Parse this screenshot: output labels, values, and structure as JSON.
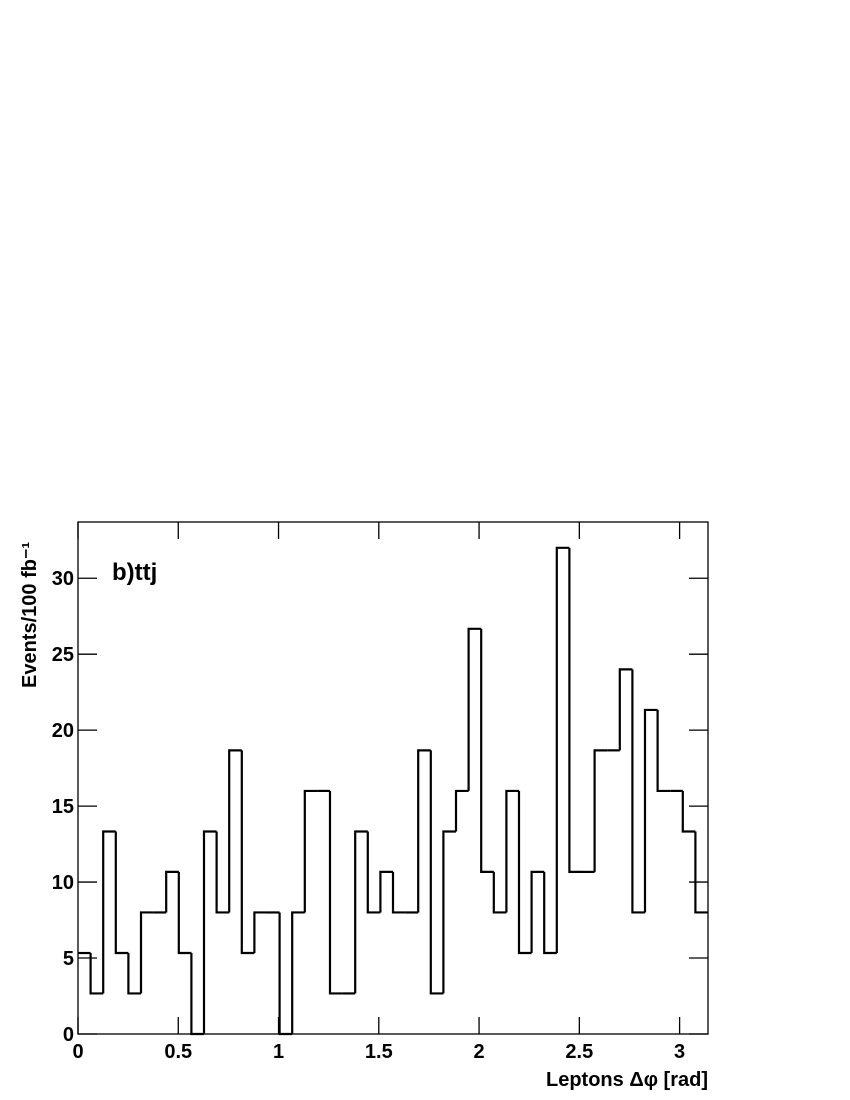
{
  "chart_data": {
    "type": "histogram",
    "annotation": "b)ttj",
    "xlabel": "Leptons Δφ [rad]",
    "ylabel": "Events/100 fb⁻¹",
    "bins": [
      0,
      0.0628,
      0.1257,
      0.1885,
      0.2513,
      0.3142,
      0.377,
      0.4398,
      0.5027,
      0.5655,
      0.6283,
      0.6912,
      0.754,
      0.8168,
      0.8796,
      0.9425,
      1.0053,
      1.0681,
      1.131,
      1.1938,
      1.2566,
      1.3195,
      1.3823,
      1.4451,
      1.508,
      1.5708,
      1.6336,
      1.6965,
      1.7593,
      1.8221,
      1.885,
      1.9478,
      2.0106,
      2.0735,
      2.1363,
      2.1991,
      2.2619,
      2.3248,
      2.3876,
      2.4504,
      2.5133,
      2.5761,
      2.6389,
      2.7018,
      2.7646,
      2.8274,
      2.8903,
      2.9531,
      3.0159,
      3.0788,
      3.1416
    ],
    "values": [
      5.33,
      2.67,
      13.33,
      5.33,
      2.67,
      8,
      8,
      10.67,
      5.33,
      0,
      13.33,
      8,
      18.67,
      5.33,
      8,
      8,
      0,
      8,
      16,
      16,
      2.67,
      2.67,
      13.33,
      8,
      10.67,
      8,
      8,
      18.67,
      2.67,
      13.33,
      16,
      26.67,
      10.67,
      8,
      16,
      5.33,
      10.67,
      5.33,
      32,
      10.67,
      10.67,
      18.67,
      18.67,
      24,
      8,
      21.33,
      16,
      16,
      13.33,
      8
    ],
    "color": "#000000",
    "xlim": [
      0,
      3.1416
    ],
    "ylim": [
      0,
      33.7
    ],
    "xticks": [
      0,
      0.5,
      1,
      1.5,
      2,
      2.5,
      3
    ],
    "yticks": [
      0,
      5,
      10,
      15,
      20,
      25,
      30
    ]
  }
}
